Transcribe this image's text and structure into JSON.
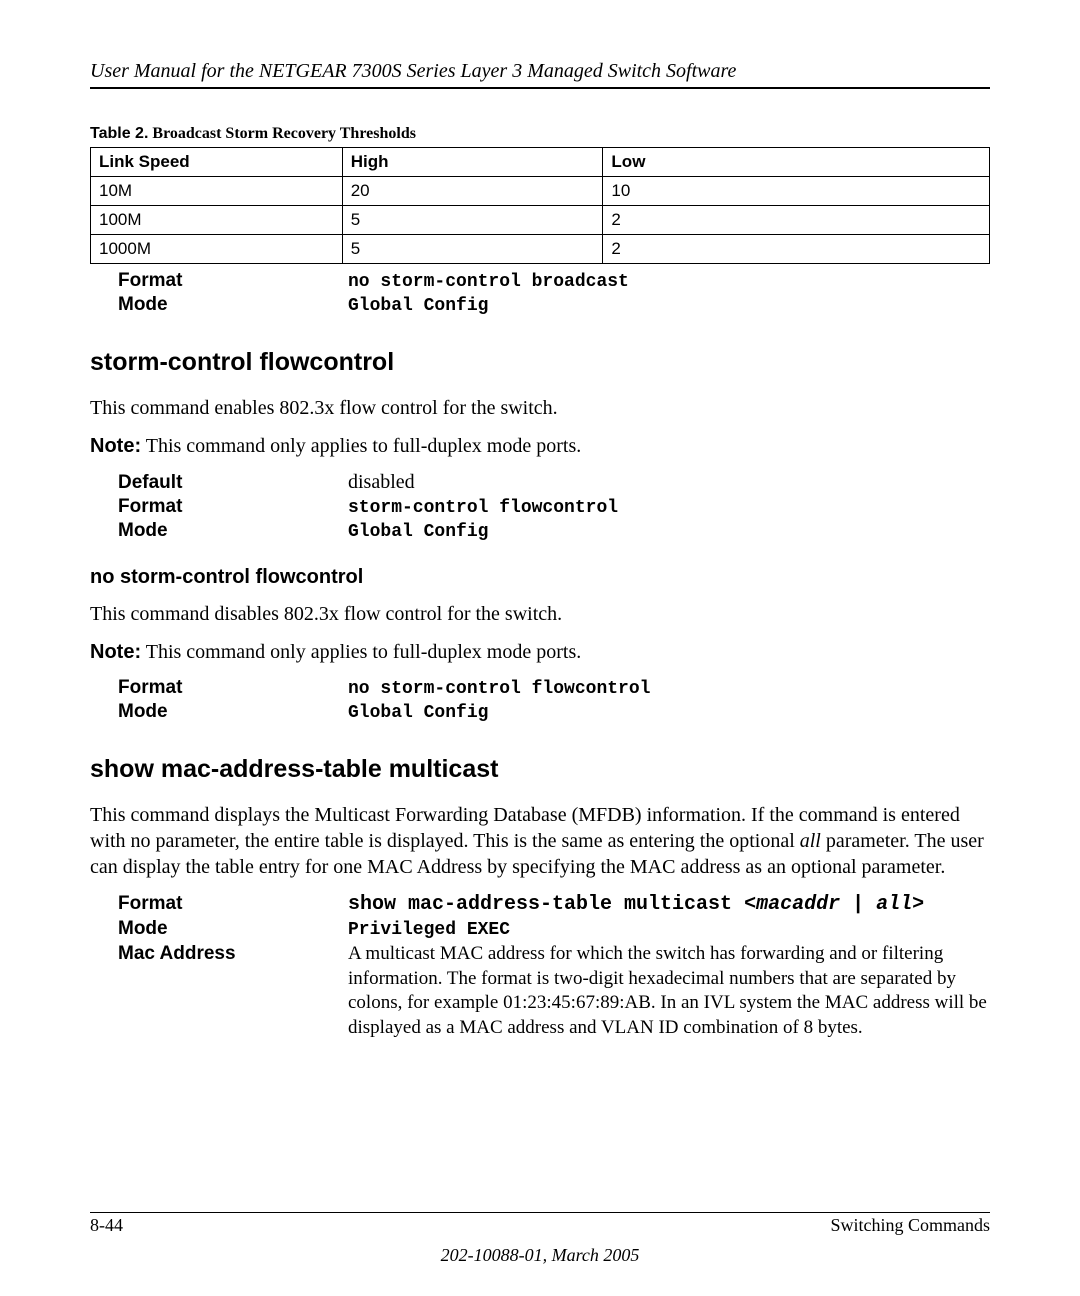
{
  "header": {
    "title": "User Manual for the NETGEAR 7300S Series Layer 3 Managed Switch Software"
  },
  "table2": {
    "label": "Table 2.",
    "title": "Broadcast Storm Recovery Thresholds",
    "columns": [
      "Link Speed",
      "High",
      "Low"
    ],
    "rows": [
      [
        "10M",
        "20",
        "10"
      ],
      [
        "100M",
        "5",
        "2"
      ],
      [
        "1000M",
        "5",
        "2"
      ]
    ]
  },
  "block1": {
    "format_label": "Format",
    "format_value": "no storm-control broadcast",
    "mode_label": "Mode",
    "mode_value": "Global Config"
  },
  "section1": {
    "heading": "storm-control flowcontrol",
    "desc": "This command enables 802.3x flow control for the switch.",
    "note_prefix": "Note:",
    "note_text": " This command only applies to full-duplex mode ports.",
    "default_label": "Default",
    "default_value": "disabled",
    "format_label": "Format",
    "format_value": "storm-control flowcontrol",
    "mode_label": "Mode",
    "mode_value": "Global Config"
  },
  "section2": {
    "heading": "no storm-control flowcontrol",
    "desc": "This command disables 802.3x flow control for the switch.",
    "note_prefix": "Note:",
    "note_text": " This command only applies to full-duplex mode ports.",
    "format_label": "Format",
    "format_value": "no storm-control flowcontrol",
    "mode_label": "Mode",
    "mode_value": "Global Config"
  },
  "section3": {
    "heading": "show mac-address-table multicast",
    "desc_part1": "This command displays the Multicast Forwarding Database (MFDB) information. If the command is entered with no parameter, the entire table is displayed. This is the same as entering the optional ",
    "desc_ital": "all",
    "desc_part2": " parameter. The user can display the table entry for one MAC Address by specifying the MAC address as an optional parameter.",
    "format_label": "Format",
    "format_value_1": "show mac-address-table multicast ",
    "format_value_2": "<macaddr",
    "format_value_3": " | ",
    "format_value_4": "all>",
    "mode_label": "Mode",
    "mode_value": "Privileged EXEC",
    "mac_label": "Mac Address",
    "mac_desc": "A multicast MAC address for which the switch has forwarding and or filtering information. The format is two-digit hexadecimal numbers that are separated by colons, for example 01:23:45:67:89:AB. In an IVL system the MAC address will be displayed as a MAC address and VLAN ID combination of 8 bytes."
  },
  "footer": {
    "page": "8-44",
    "section": "Switching Commands",
    "docnum": "202-10088-01, March 2005"
  }
}
